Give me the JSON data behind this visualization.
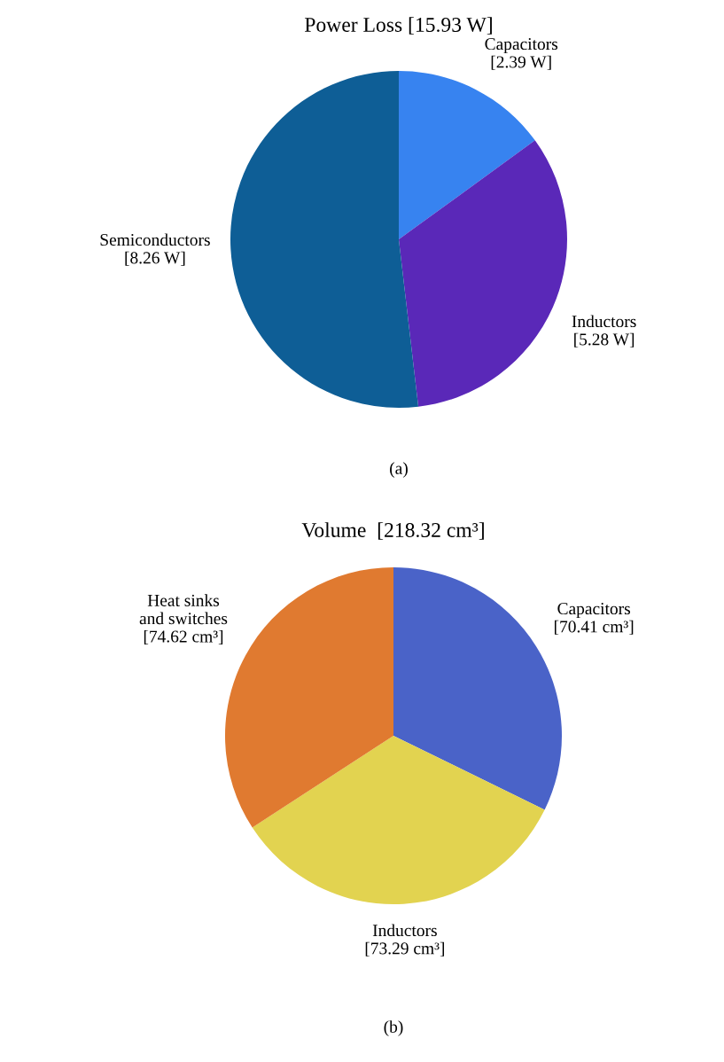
{
  "chart_data": [
    {
      "type": "pie",
      "title": "Power Loss [15.93 W]",
      "categories": [
        "Capacitors",
        "Inductors",
        "Semiconductors"
      ],
      "values": [
        2.39,
        5.28,
        8.26
      ],
      "colors": [
        "#3783f0",
        "#5a28b8",
        "#0e5e96"
      ],
      "value_labels": [
        "[2.39 W]",
        "[5.28 W]",
        "[8.26 W]"
      ],
      "annotations": [
        "(a)"
      ]
    },
    {
      "type": "pie",
      "title": "Volume  [218.32 cm³]",
      "categories": [
        "Capacitors",
        "Inductors",
        "Heat sinks\nand switches"
      ],
      "values": [
        70.41,
        73.29,
        74.62
      ],
      "colors": [
        "#4a63c8",
        "#e2d350",
        "#e07a30"
      ],
      "value_labels": [
        "[70.41 cm³]",
        "[73.29 cm³]",
        "[74.62 cm³]"
      ],
      "annotations": [
        "(b)"
      ]
    }
  ]
}
